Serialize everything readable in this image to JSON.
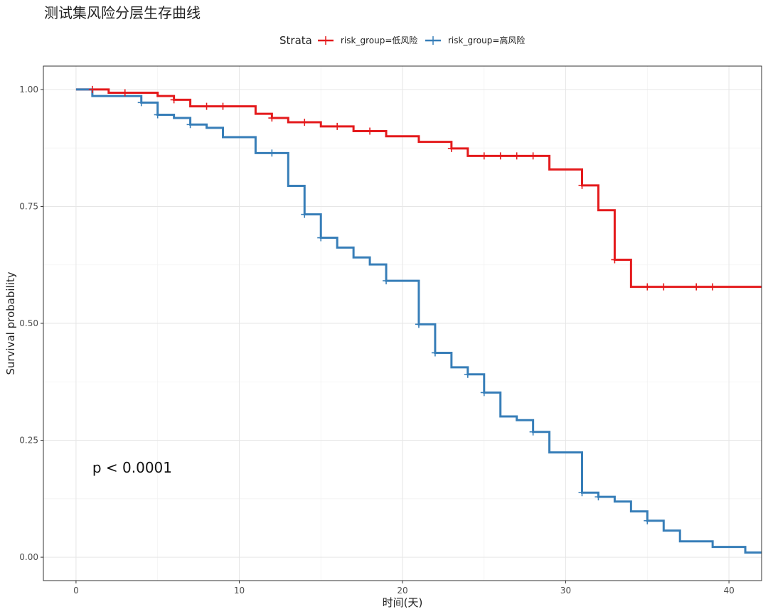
{
  "chart_data": {
    "type": "line",
    "subtype": "kaplan-meier step",
    "title": "测试集风险分层生存曲线",
    "xlabel": "时间(天)",
    "ylabel": "Survival probability",
    "xlim": [
      -2,
      42
    ],
    "ylim": [
      -0.05,
      1.05
    ],
    "xticks": [
      0,
      10,
      20,
      30,
      40
    ],
    "xtick_labels": [
      "0",
      "10",
      "20",
      "30",
      "40"
    ],
    "yticks": [
      0,
      0.25,
      0.5,
      0.75,
      1.0
    ],
    "ytick_labels": [
      "0.00",
      "0.25",
      "0.50",
      "0.75",
      "1.00"
    ],
    "grid": true,
    "legend": {
      "title": "Strata",
      "position": "top",
      "entries": [
        "risk_group=低风险",
        "risk_group=高风险"
      ]
    },
    "annotation": {
      "text": "p < 0.0001",
      "x": 1,
      "y": 0.19
    },
    "series": [
      {
        "name": "risk_group=低风险",
        "color": "#E41A1C",
        "steps": [
          [
            0,
            1.0
          ],
          [
            2,
            0.993
          ],
          [
            5,
            0.986
          ],
          [
            6,
            0.978
          ],
          [
            7,
            0.964
          ],
          [
            11,
            0.948
          ],
          [
            12,
            0.939
          ],
          [
            13,
            0.93
          ],
          [
            15,
            0.921
          ],
          [
            17,
            0.911
          ],
          [
            19,
            0.9
          ],
          [
            21,
            0.888
          ],
          [
            23,
            0.874
          ],
          [
            24,
            0.858
          ],
          [
            29,
            0.829
          ],
          [
            31,
            0.795
          ],
          [
            32,
            0.742
          ],
          [
            33,
            0.636
          ],
          [
            34,
            0.578
          ],
          [
            42,
            0.578
          ]
        ],
        "censors": [
          [
            1,
            1.0
          ],
          [
            3,
            0.993
          ],
          [
            6,
            0.978
          ],
          [
            8,
            0.964
          ],
          [
            9,
            0.964
          ],
          [
            12,
            0.939
          ],
          [
            14,
            0.93
          ],
          [
            16,
            0.921
          ],
          [
            18,
            0.911
          ],
          [
            23,
            0.874
          ],
          [
            25,
            0.858
          ],
          [
            26,
            0.858
          ],
          [
            27,
            0.858
          ],
          [
            28,
            0.858
          ],
          [
            31,
            0.795
          ],
          [
            33,
            0.636
          ],
          [
            35,
            0.578
          ],
          [
            36,
            0.578
          ],
          [
            38,
            0.578
          ],
          [
            39,
            0.578
          ]
        ]
      },
      {
        "name": "risk_group=高风险",
        "color": "#377EB8",
        "steps": [
          [
            0,
            1.0
          ],
          [
            1,
            0.986
          ],
          [
            4,
            0.972
          ],
          [
            5,
            0.946
          ],
          [
            6,
            0.939
          ],
          [
            7,
            0.925
          ],
          [
            8,
            0.918
          ],
          [
            9,
            0.898
          ],
          [
            11,
            0.864
          ],
          [
            13,
            0.794
          ],
          [
            14,
            0.733
          ],
          [
            15,
            0.683
          ],
          [
            16,
            0.662
          ],
          [
            17,
            0.641
          ],
          [
            18,
            0.626
          ],
          [
            19,
            0.591
          ],
          [
            21,
            0.498
          ],
          [
            22,
            0.437
          ],
          [
            23,
            0.406
          ],
          [
            24,
            0.391
          ],
          [
            25,
            0.352
          ],
          [
            26,
            0.301
          ],
          [
            27,
            0.293
          ],
          [
            28,
            0.268
          ],
          [
            29,
            0.224
          ],
          [
            31,
            0.138
          ],
          [
            32,
            0.129
          ],
          [
            33,
            0.119
          ],
          [
            34,
            0.098
          ],
          [
            35,
            0.078
          ],
          [
            36,
            0.057
          ],
          [
            37,
            0.034
          ],
          [
            39,
            0.022
          ],
          [
            41,
            0.01
          ],
          [
            42,
            0.01
          ]
        ],
        "censors": [
          [
            4,
            0.972
          ],
          [
            5,
            0.946
          ],
          [
            7,
            0.925
          ],
          [
            12,
            0.864
          ],
          [
            14,
            0.733
          ],
          [
            15,
            0.683
          ],
          [
            19,
            0.591
          ],
          [
            21,
            0.498
          ],
          [
            22,
            0.437
          ],
          [
            24,
            0.391
          ],
          [
            25,
            0.352
          ],
          [
            28,
            0.268
          ],
          [
            31,
            0.138
          ],
          [
            32,
            0.129
          ],
          [
            35,
            0.078
          ]
        ]
      }
    ]
  }
}
